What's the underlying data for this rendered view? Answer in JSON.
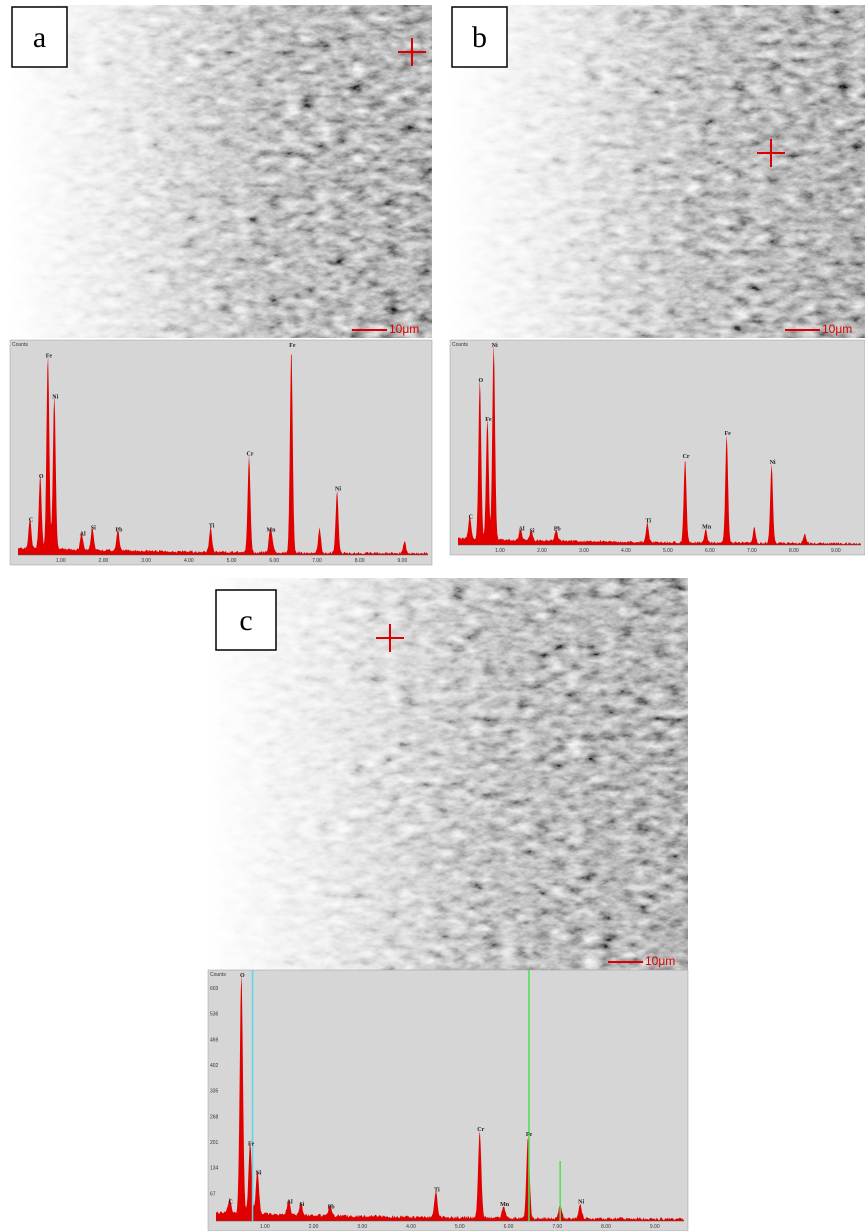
{
  "panels": [
    {
      "label": "a",
      "scale_bar": "10μm",
      "spectrum": {
        "y_axis_label": "Counts",
        "peaks": [
          "C",
          "O",
          "Fe",
          "Ni",
          "Al",
          "Si",
          "Pb",
          "Ti",
          "Cr",
          "Mn",
          "Fe",
          "Ni"
        ],
        "x_ticks": [
          "1.00",
          "2.00",
          "3.00",
          "4.00",
          "5.00",
          "6.00",
          "7.00",
          "8.00",
          "9.00"
        ]
      }
    },
    {
      "label": "b",
      "scale_bar": "10μm",
      "spectrum": {
        "y_axis_label": "Counts",
        "peaks": [
          "C",
          "O",
          "Fe",
          "Ni",
          "Al",
          "Si",
          "Pb",
          "Ti",
          "Cr",
          "Mn",
          "Fe",
          "Ni"
        ],
        "x_ticks": [
          "1.00",
          "2.00",
          "3.00",
          "4.00",
          "5.00",
          "6.00",
          "7.00",
          "8.00",
          "9.00"
        ]
      }
    },
    {
      "label": "c",
      "scale_bar": "10μm",
      "spectrum": {
        "y_axis_label": "Counts",
        "peaks": [
          "C",
          "O",
          "Fe",
          "Ni",
          "Al",
          "Si",
          "Pb",
          "Ti",
          "Cr",
          "Mn",
          "Fe",
          "Ni"
        ],
        "y_ticks": [
          "603",
          "536",
          "469",
          "402",
          "335",
          "268",
          "201",
          "134",
          "67"
        ],
        "x_ticks": [
          "1.00",
          "2.00",
          "3.00",
          "4.00",
          "5.00",
          "6.00",
          "7.00",
          "8.00",
          "9.00"
        ]
      }
    }
  ]
}
